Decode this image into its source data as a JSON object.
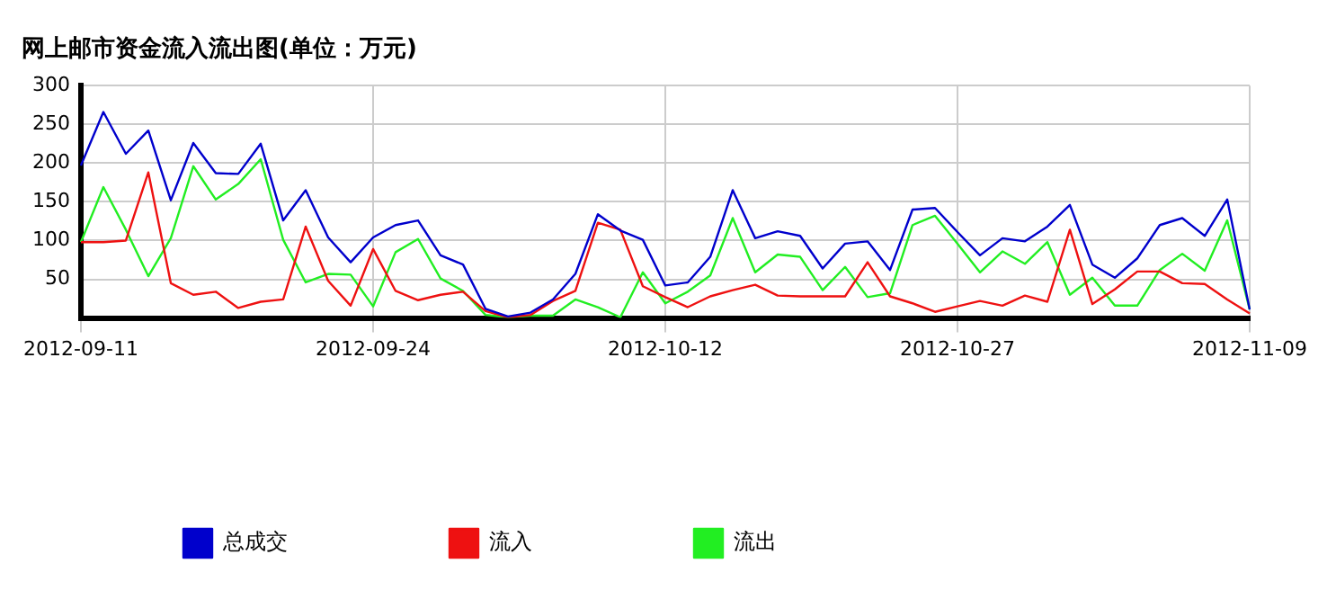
{
  "chart_data": {
    "type": "line",
    "title": "网上邮市资金流入流出图(单位：万元)",
    "categories": [
      "2012-09-11",
      null,
      null,
      null,
      null,
      null,
      null,
      null,
      null,
      null,
      null,
      null,
      null,
      "2012-09-24",
      null,
      null,
      null,
      null,
      null,
      null,
      null,
      null,
      null,
      null,
      null,
      null,
      "2012-10-12",
      null,
      null,
      null,
      null,
      null,
      null,
      null,
      null,
      null,
      null,
      null,
      null,
      "2012-10-27",
      null,
      null,
      null,
      null,
      null,
      null,
      null,
      null,
      null,
      null,
      null,
      null,
      "2012-11-09"
    ],
    "series": [
      {
        "name": "总成交",
        "color": "#0000cc",
        "values": [
          197,
          266,
          212,
          242,
          152,
          226,
          187,
          186,
          225,
          126,
          165,
          104,
          72,
          104,
          120,
          126,
          81,
          69,
          12,
          2,
          7,
          24,
          57,
          134,
          113,
          101,
          42,
          46,
          79,
          165,
          103,
          112,
          106,
          64,
          96,
          99,
          62,
          140,
          142,
          111,
          81,
          103,
          99,
          118,
          146,
          69,
          52,
          77,
          120,
          129,
          106,
          153,
          11
        ]
      },
      {
        "name": "流入",
        "color": "#ee1111",
        "values": [
          98,
          98,
          100,
          188,
          45,
          30,
          34,
          13,
          21,
          24,
          118,
          48,
          16,
          89,
          35,
          23,
          30,
          34,
          9,
          1,
          4,
          22,
          35,
          123,
          114,
          41,
          27,
          14,
          28,
          36,
          43,
          29,
          28,
          28,
          28,
          72,
          28,
          19,
          8,
          15,
          22,
          16,
          29,
          21,
          114,
          18,
          37,
          60,
          60,
          45,
          44,
          24,
          6
        ]
      },
      {
        "name": "流出",
        "color": "#22ee22",
        "values": [
          98,
          169,
          114,
          54,
          103,
          196,
          153,
          173,
          205,
          101,
          46,
          57,
          56,
          15,
          85,
          102,
          51,
          35,
          4,
          1,
          3,
          3,
          24,
          14,
          1,
          59,
          19,
          34,
          55,
          129,
          59,
          82,
          79,
          36,
          66,
          27,
          32,
          120,
          132,
          96,
          59,
          86,
          70,
          98,
          30,
          52,
          16,
          16,
          62,
          83,
          61,
          126,
          11
        ]
      }
    ],
    "ylim": [
      0,
      300
    ],
    "yticks": [
      50,
      100,
      150,
      200,
      250,
      300
    ],
    "grid": true,
    "legend": "bottom",
    "marker": "none",
    "line_style": "solid"
  }
}
